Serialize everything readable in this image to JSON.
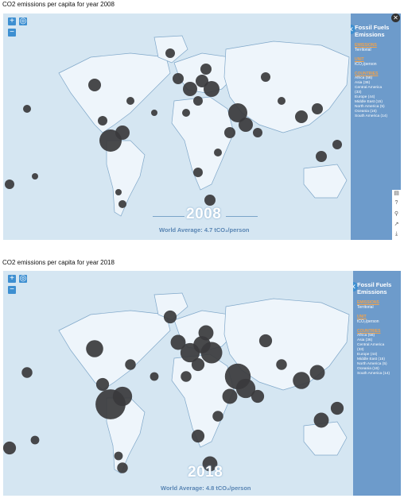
{
  "panels": [
    {
      "caption": "CO2 emissions per capita for year 2008",
      "year": "2008",
      "world_average": "World Average: 4.7 tCO₂/person"
    },
    {
      "caption": "CO2 emissions per capita for year 2018",
      "year": "2018",
      "world_average": "World Average: 4.8 tCO₂/person"
    }
  ],
  "legend": {
    "title_line1": "Fossil Fuels",
    "title_line2": "Emissions",
    "emissions_label": "EMISSIONS",
    "emissions_value": "Territorial",
    "unit_label": "UNIT",
    "unit_value": "tCO₂/person",
    "countries_label": "COUNTRIES",
    "countries": [
      "Africa (56)",
      "Asia (36)",
      "Central America",
      "(33)",
      "Europe (44)",
      "Middle East (15)",
      "North America (5)",
      "Oceania (16)",
      "South America (14)"
    ]
  },
  "controls": {
    "zoom_in": "+",
    "zoom_out": "−",
    "close": "✕"
  },
  "colors": {
    "ocean": "#d5e6f2",
    "land": "#eef5fb",
    "bubble": "#3a3a3c",
    "legend_bg": "#6d9bcb",
    "accent": "#f2a24a"
  }
}
